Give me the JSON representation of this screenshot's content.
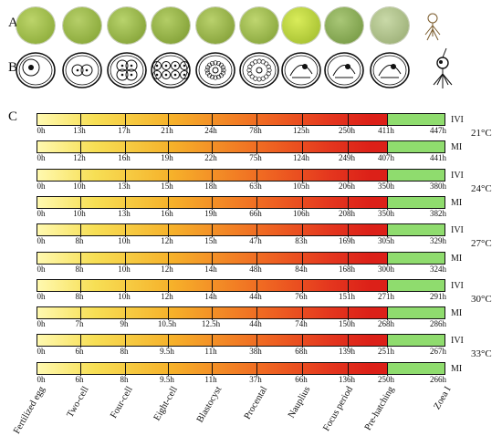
{
  "panels": {
    "a": "A",
    "b": "B",
    "c": "C"
  },
  "stages": [
    "Fertilized egg",
    "Two-cell",
    "Four-cell",
    "Eight-cell",
    "Blastocyst",
    "Procental",
    "Nauplius",
    "Focus period",
    "Pre-hatching",
    "Zoea I"
  ],
  "rows": [
    {
      "label": "IVI",
      "temp": "21°C",
      "times": [
        "0h",
        "13h",
        "17h",
        "21h",
        "24h",
        "78h",
        "125h",
        "250h",
        "411h",
        "447h"
      ]
    },
    {
      "label": "MI",
      "temp": "",
      "times": [
        "0h",
        "12h",
        "16h",
        "19h",
        "22h",
        "75h",
        "124h",
        "249h",
        "407h",
        "441h"
      ]
    },
    {
      "label": "IVI",
      "temp": "24°C",
      "times": [
        "0h",
        "10h",
        "13h",
        "15h",
        "18h",
        "63h",
        "105h",
        "206h",
        "350h",
        "380h"
      ]
    },
    {
      "label": "MI",
      "temp": "",
      "times": [
        "0h",
        "10h",
        "13h",
        "16h",
        "19h",
        "66h",
        "106h",
        "208h",
        "350h",
        "382h"
      ]
    },
    {
      "label": "IVI",
      "temp": "27°C",
      "times": [
        "0h",
        "8h",
        "10h",
        "12h",
        "15h",
        "47h",
        "83h",
        "169h",
        "305h",
        "329h"
      ]
    },
    {
      "label": "MI",
      "temp": "",
      "times": [
        "0h",
        "8h",
        "10h",
        "12h",
        "14h",
        "48h",
        "84h",
        "168h",
        "300h",
        "324h"
      ]
    },
    {
      "label": "IVI",
      "temp": "30°C",
      "times": [
        "0h",
        "8h",
        "10h",
        "12h",
        "14h",
        "44h",
        "76h",
        "151h",
        "271h",
        "291h"
      ]
    },
    {
      "label": "MI",
      "temp": "",
      "times": [
        "0h",
        "7h",
        "9h",
        "10.5h",
        "12.5h",
        "44h",
        "74h",
        "150h",
        "268h",
        "286h"
      ]
    },
    {
      "label": "IVI",
      "temp": "33°C",
      "times": [
        "0h",
        "6h",
        "8h",
        "9.5h",
        "11h",
        "38h",
        "68h",
        "139h",
        "251h",
        "267h"
      ]
    },
    {
      "label": "MI",
      "temp": "",
      "times": [
        "0h",
        "6h",
        "8h",
        "9.5h",
        "11h",
        "37h",
        "66h",
        "136h",
        "250h",
        "266h"
      ]
    }
  ]
}
